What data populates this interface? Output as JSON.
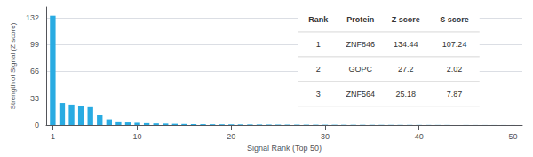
{
  "chart_data": {
    "type": "bar",
    "xlabel": "Signal Rank (Top 50)",
    "ylabel": "Strength of Signal (Z score)",
    "x": [
      1,
      2,
      3,
      4,
      5,
      6,
      7,
      8,
      9,
      10,
      11,
      12,
      13,
      14,
      15,
      16,
      17,
      18,
      19,
      20,
      21,
      22,
      23,
      24,
      25,
      26,
      27,
      28,
      29,
      30,
      31,
      32,
      33,
      34,
      35,
      36,
      37,
      38,
      39,
      40,
      41,
      42,
      43,
      44,
      45,
      46,
      47,
      48,
      49,
      50
    ],
    "values": [
      134.44,
      27.2,
      25.18,
      23.5,
      22.0,
      12.0,
      7.0,
      4.5,
      3.2,
      2.8,
      2.3,
      2.0,
      1.8,
      1.5,
      1.3,
      1.1,
      1.0,
      0.9,
      0.85,
      0.8,
      0.75,
      0.7,
      0.65,
      0.6,
      0.55,
      0.52,
      0.49,
      0.46,
      0.43,
      0.41,
      0.38,
      0.35,
      0.33,
      0.31,
      0.29,
      0.27,
      0.25,
      0.23,
      0.21,
      0.19,
      0.17,
      0.15,
      0.13,
      0.11,
      0.09,
      0.08,
      0.07,
      0.06,
      0.05,
      0.04
    ],
    "color": "#29ABE2",
    "xlim": [
      0.3,
      51
    ],
    "xticks": [
      1,
      10,
      20,
      30,
      40,
      50
    ],
    "ylim": [
      0,
      145
    ],
    "yticks": [
      0,
      33,
      66,
      99,
      132
    ],
    "grid": true,
    "table": {
      "columns": [
        "Rank",
        "Protein",
        "Z score",
        "S score"
      ],
      "rows": [
        [
          "1",
          "ZNF846",
          "134.44",
          "107.24"
        ],
        [
          "2",
          "GOPC",
          "27.2",
          "2.02"
        ],
        [
          "3",
          "ZNF564",
          "25.18",
          "7.87"
        ]
      ]
    }
  }
}
